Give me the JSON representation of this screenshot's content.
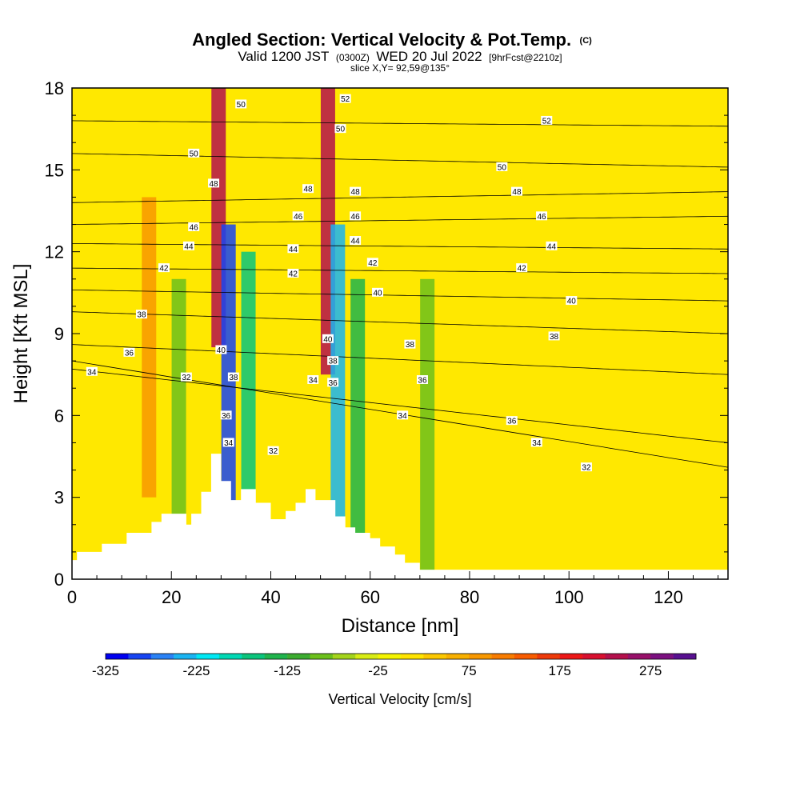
{
  "header": {
    "title_main": "Angled Section: Vertical Velocity & Pot.Temp.",
    "title_unit": "(C)",
    "valid_prefix": "Valid 1200 JST",
    "valid_zulu": "(0300Z)",
    "valid_date": "WED 20 Jul 2022",
    "valid_fcst": "[9hrFcst@2210z]",
    "slice": "slice X,Y= 92,59@135°"
  },
  "chart_data": {
    "type": "heatmap",
    "title": "Angled Section: Vertical Velocity & Pot.Temp. (C)",
    "xlabel": "Distance [nm]",
    "ylabel": "Height [Kft MSL]",
    "xlim": [
      0,
      132
    ],
    "ylim": [
      0,
      18
    ],
    "x_ticks": [
      "0",
      "20",
      "40",
      "60",
      "80",
      "100",
      "120"
    ],
    "y_ticks": [
      "0",
      "3",
      "6",
      "9",
      "12",
      "15",
      "18"
    ],
    "colorbar": {
      "label": "Vertical Velocity [cm/s]",
      "tick_labels": [
        "-325",
        "-225",
        "-125",
        "-25",
        "75",
        "175",
        "275"
      ],
      "min": -325,
      "max": 300,
      "step": 25,
      "colors": [
        "#0000f0",
        "#1744f2",
        "#2a82f6",
        "#1ab4f2",
        "#00e8f4",
        "#00d8b4",
        "#0bc47c",
        "#20b44c",
        "#3cac30",
        "#6cc01c",
        "#a4d41c",
        "#d8ec14",
        "#f4f400",
        "#ffe400",
        "#fcc800",
        "#f8b000",
        "#f89800",
        "#f87c00",
        "#f85c00",
        "#ee3a0a",
        "#ec1818",
        "#d81030",
        "#b4104c",
        "#98106a",
        "#7c1080",
        "#581090"
      ]
    },
    "terrain_kft": {
      "x": [
        0,
        1,
        1,
        6,
        6,
        11,
        11,
        16,
        16,
        18,
        18,
        23,
        23,
        24,
        24,
        26,
        26,
        28,
        28,
        30,
        30,
        32,
        32,
        34,
        34,
        37,
        37,
        40,
        40,
        43,
        43,
        45,
        45,
        47,
        47,
        49,
        49,
        53,
        53,
        55,
        55,
        57,
        57,
        60,
        60,
        62,
        62,
        65,
        65,
        67,
        67,
        70,
        70,
        132
      ],
      "y": [
        0.7,
        0.7,
        1.0,
        1.0,
        1.3,
        1.3,
        1.7,
        1.7,
        2.1,
        2.1,
        2.4,
        2.4,
        2.0,
        2.0,
        2.4,
        2.4,
        3.2,
        3.2,
        4.6,
        4.6,
        3.6,
        3.6,
        2.9,
        2.9,
        3.3,
        3.3,
        2.8,
        2.8,
        2.2,
        2.2,
        2.5,
        2.5,
        2.8,
        2.8,
        3.3,
        3.3,
        2.9,
        2.9,
        2.3,
        2.3,
        1.9,
        1.9,
        1.7,
        1.7,
        1.5,
        1.5,
        1.2,
        1.2,
        0.9,
        0.9,
        0.6,
        0.6,
        0.35,
        0.35
      ]
    },
    "theta_isotherms_c": [
      {
        "level": 32,
        "h_west": 8.0,
        "h_east": 4.1
      },
      {
        "level": 34,
        "h_west": 7.7,
        "h_east": 5.0
      },
      {
        "level": 36,
        "h_west": 8.6,
        "h_east": 7.5
      },
      {
        "level": 38,
        "h_west": 9.8,
        "h_east": 9.0
      },
      {
        "level": 40,
        "h_west": 10.6,
        "h_east": 10.2
      },
      {
        "level": 42,
        "h_west": 11.4,
        "h_east": 11.2
      },
      {
        "level": 44,
        "h_west": 12.3,
        "h_east": 12.1
      },
      {
        "level": 46,
        "h_west": 13.0,
        "h_east": 13.3
      },
      {
        "level": 48,
        "h_west": 13.8,
        "h_east": 14.2
      },
      {
        "level": 50,
        "h_west": 15.6,
        "h_east": 15.1
      },
      {
        "level": 52,
        "h_west": 16.8,
        "h_east": 16.6
      }
    ],
    "velocity_features_cm_s": [
      {
        "x": 29.5,
        "h": 14.5,
        "value": 225
      },
      {
        "x": 31.5,
        "h": 8.0,
        "value": -300
      },
      {
        "x": 35.5,
        "h": 7.0,
        "value": -175
      },
      {
        "x": 51.5,
        "h": 13.5,
        "value": 225
      },
      {
        "x": 53.5,
        "h": 8.0,
        "value": -250
      },
      {
        "x": 57.5,
        "h": 6.0,
        "value": -150
      },
      {
        "x": 71.5,
        "h": 6.0,
        "value": -100
      },
      {
        "x": 15.5,
        "h": 9.0,
        "value": 75
      },
      {
        "x": 21.5,
        "h": 6.0,
        "value": -100
      }
    ],
    "isotherm_labels": [
      {
        "text": "32",
        "x": 23.0,
        "h": 7.4
      },
      {
        "text": "32",
        "x": 40.5,
        "h": 4.7
      },
      {
        "text": "32",
        "x": 103.5,
        "h": 4.1
      },
      {
        "text": "34",
        "x": 4.0,
        "h": 7.6
      },
      {
        "text": "34",
        "x": 31.5,
        "h": 5.0
      },
      {
        "text": "34",
        "x": 48.5,
        "h": 7.3
      },
      {
        "text": "34",
        "x": 66.5,
        "h": 6.0
      },
      {
        "text": "34",
        "x": 93.5,
        "h": 5.0
      },
      {
        "text": "36",
        "x": 11.5,
        "h": 8.3
      },
      {
        "text": "36",
        "x": 31.0,
        "h": 6.0
      },
      {
        "text": "36",
        "x": 52.5,
        "h": 7.2
      },
      {
        "text": "36",
        "x": 70.5,
        "h": 7.3
      },
      {
        "text": "36",
        "x": 88.5,
        "h": 5.8
      },
      {
        "text": "38",
        "x": 14.0,
        "h": 9.7
      },
      {
        "text": "38",
        "x": 32.5,
        "h": 7.4
      },
      {
        "text": "38",
        "x": 52.5,
        "h": 8.0
      },
      {
        "text": "38",
        "x": 68.0,
        "h": 8.6
      },
      {
        "text": "38",
        "x": 97.0,
        "h": 8.9
      },
      {
        "text": "40",
        "x": 30.0,
        "h": 8.4
      },
      {
        "text": "40",
        "x": 51.5,
        "h": 8.8
      },
      {
        "text": "40",
        "x": 61.5,
        "h": 10.5
      },
      {
        "text": "40",
        "x": 100.5,
        "h": 10.2
      },
      {
        "text": "42",
        "x": 18.5,
        "h": 11.4
      },
      {
        "text": "42",
        "x": 44.5,
        "h": 11.2
      },
      {
        "text": "42",
        "x": 60.5,
        "h": 11.6
      },
      {
        "text": "42",
        "x": 90.5,
        "h": 11.4
      },
      {
        "text": "44",
        "x": 23.5,
        "h": 12.2
      },
      {
        "text": "44",
        "x": 44.5,
        "h": 12.1
      },
      {
        "text": "44",
        "x": 57.0,
        "h": 12.4
      },
      {
        "text": "44",
        "x": 96.5,
        "h": 12.2
      },
      {
        "text": "46",
        "x": 24.5,
        "h": 12.9
      },
      {
        "text": "46",
        "x": 45.5,
        "h": 13.3
      },
      {
        "text": "46",
        "x": 57.0,
        "h": 13.3
      },
      {
        "text": "46",
        "x": 94.5,
        "h": 13.3
      },
      {
        "text": "48",
        "x": 28.5,
        "h": 14.5
      },
      {
        "text": "48",
        "x": 47.5,
        "h": 14.3
      },
      {
        "text": "48",
        "x": 57.0,
        "h": 14.2
      },
      {
        "text": "48",
        "x": 89.5,
        "h": 14.2
      },
      {
        "text": "50",
        "x": 24.5,
        "h": 15.6
      },
      {
        "text": "50",
        "x": 34.0,
        "h": 17.4
      },
      {
        "text": "50",
        "x": 54.0,
        "h": 16.5
      },
      {
        "text": "50",
        "x": 86.5,
        "h": 15.1
      },
      {
        "text": "52",
        "x": 55.0,
        "h": 17.6
      },
      {
        "text": "52",
        "x": 95.5,
        "h": 16.8
      }
    ]
  }
}
